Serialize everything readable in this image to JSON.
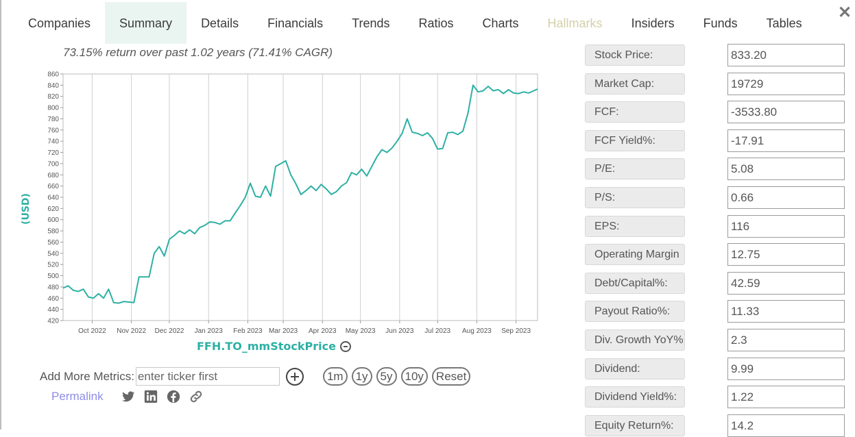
{
  "tabs": [
    "Companies",
    "Summary",
    "Details",
    "Financials",
    "Trends",
    "Ratios",
    "Charts",
    "Hallmarks",
    "Insiders",
    "Funds",
    "Tables"
  ],
  "active_tab": "Summary",
  "disabled_tab": "Hallmarks",
  "close_label": "✕",
  "chart_title": "73.15% return over past 1.02 years (71.41% CAGR)",
  "series_name": "FFH.TO_mmStockPrice",
  "add_metrics": {
    "label": "Add More Metrics:",
    "placeholder": "enter ticker first"
  },
  "range_buttons": [
    "1m",
    "1y",
    "5y",
    "10y",
    "Reset"
  ],
  "permalink_label": "Permalink",
  "share_icons": [
    "twitter-icon",
    "linkedin-icon",
    "facebook-icon",
    "link-icon"
  ],
  "metrics": [
    {
      "label": "Stock Price:",
      "value": "833.20"
    },
    {
      "label": "Market Cap:",
      "value": "19729"
    },
    {
      "label": "FCF:",
      "value": "-3533.80"
    },
    {
      "label": "FCF Yield%:",
      "value": "-17.91"
    },
    {
      "label": "P/E:",
      "value": "5.08"
    },
    {
      "label": "P/S:",
      "value": "0.66"
    },
    {
      "label": "EPS:",
      "value": "116"
    },
    {
      "label": "Operating Margin",
      "value": "12.75"
    },
    {
      "label": "Debt/Capital%:",
      "value": "42.59"
    },
    {
      "label": "Payout Ratio%:",
      "value": "11.33"
    },
    {
      "label": "Div. Growth YoY%",
      "value": "2.3"
    },
    {
      "label": "Dividend:",
      "value": "9.99"
    },
    {
      "label": "Dividend Yield%:",
      "value": "1.22"
    },
    {
      "label": "Equity Return%:",
      "value": "14.2"
    }
  ],
  "colors": {
    "line": "#2db0a4",
    "accent": "#2db0a4",
    "disabled_tab": "#d4d0a8",
    "permalink": "#8e8ce6"
  },
  "chart_data": {
    "type": "line",
    "title": "73.15% return over past 1.02 years (71.41% CAGR)",
    "ylabel": "(USD)",
    "xlabel": "",
    "series_name": "FFH.TO_mmStockPrice",
    "ylim": [
      420,
      860
    ],
    "y_ticks": [
      420,
      440,
      460,
      480,
      500,
      520,
      540,
      560,
      580,
      600,
      620,
      640,
      660,
      680,
      700,
      720,
      740,
      760,
      780,
      800,
      820,
      840,
      860
    ],
    "x_ticks": [
      "Oct 2022",
      "Nov 2022",
      "Dec 2022",
      "Jan 2023",
      "Feb 2023",
      "Mar 2023",
      "Apr 2023",
      "May 2023",
      "Jun 2023",
      "Jul 2023",
      "Aug 2023",
      "Sep 2023"
    ],
    "x_range": [
      "2022-09-08",
      "2023-09-18"
    ],
    "grid": "vertical",
    "x": [
      "2022-09-08",
      "2022-09-12",
      "2022-09-16",
      "2022-09-20",
      "2022-09-24",
      "2022-09-28",
      "2022-10-02",
      "2022-10-06",
      "2022-10-10",
      "2022-10-14",
      "2022-10-18",
      "2022-10-22",
      "2022-10-26",
      "2022-10-30",
      "2022-11-03",
      "2022-11-07",
      "2022-11-11",
      "2022-11-15",
      "2022-11-19",
      "2022-11-23",
      "2022-11-27",
      "2022-12-01",
      "2022-12-05",
      "2022-12-09",
      "2022-12-13",
      "2022-12-17",
      "2022-12-21",
      "2022-12-25",
      "2022-12-29",
      "2023-01-02",
      "2023-01-06",
      "2023-01-10",
      "2023-01-14",
      "2023-01-18",
      "2023-01-22",
      "2023-01-26",
      "2023-01-30",
      "2023-02-03",
      "2023-02-07",
      "2023-02-11",
      "2023-02-15",
      "2023-02-19",
      "2023-02-23",
      "2023-02-27",
      "2023-03-03",
      "2023-03-07",
      "2023-03-11",
      "2023-03-15",
      "2023-03-19",
      "2023-03-23",
      "2023-03-27",
      "2023-03-31",
      "2023-04-04",
      "2023-04-08",
      "2023-04-12",
      "2023-04-16",
      "2023-04-20",
      "2023-04-24",
      "2023-04-28",
      "2023-05-02",
      "2023-05-06",
      "2023-05-10",
      "2023-05-14",
      "2023-05-18",
      "2023-05-22",
      "2023-05-26",
      "2023-05-30",
      "2023-06-03",
      "2023-06-07",
      "2023-06-11",
      "2023-06-15",
      "2023-06-19",
      "2023-06-23",
      "2023-06-27",
      "2023-07-01",
      "2023-07-05",
      "2023-07-09",
      "2023-07-13",
      "2023-07-17",
      "2023-07-21",
      "2023-07-25",
      "2023-07-29",
      "2023-08-02",
      "2023-08-06",
      "2023-08-10",
      "2023-08-14",
      "2023-08-18",
      "2023-08-22",
      "2023-08-26",
      "2023-08-30",
      "2023-09-03",
      "2023-09-07",
      "2023-09-11",
      "2023-09-15",
      "2023-09-18"
    ],
    "values": [
      478,
      482,
      474,
      472,
      476,
      462,
      460,
      468,
      460,
      476,
      452,
      451,
      454,
      453,
      452,
      498,
      498,
      498,
      540,
      552,
      535,
      565,
      572,
      580,
      575,
      582,
      575,
      586,
      590,
      596,
      595,
      592,
      598,
      598,
      612,
      625,
      640,
      665,
      642,
      640,
      660,
      642,
      695,
      700,
      705,
      680,
      664,
      645,
      652,
      660,
      652,
      663,
      655,
      645,
      650,
      660,
      666,
      684,
      680,
      690,
      678,
      695,
      712,
      725,
      720,
      728,
      740,
      754,
      780,
      756,
      754,
      750,
      755,
      745,
      726,
      727,
      755,
      756,
      752,
      758,
      790,
      840,
      828,
      830,
      838,
      830,
      832,
      825,
      832,
      826,
      825,
      828,
      826,
      830,
      833
    ]
  }
}
